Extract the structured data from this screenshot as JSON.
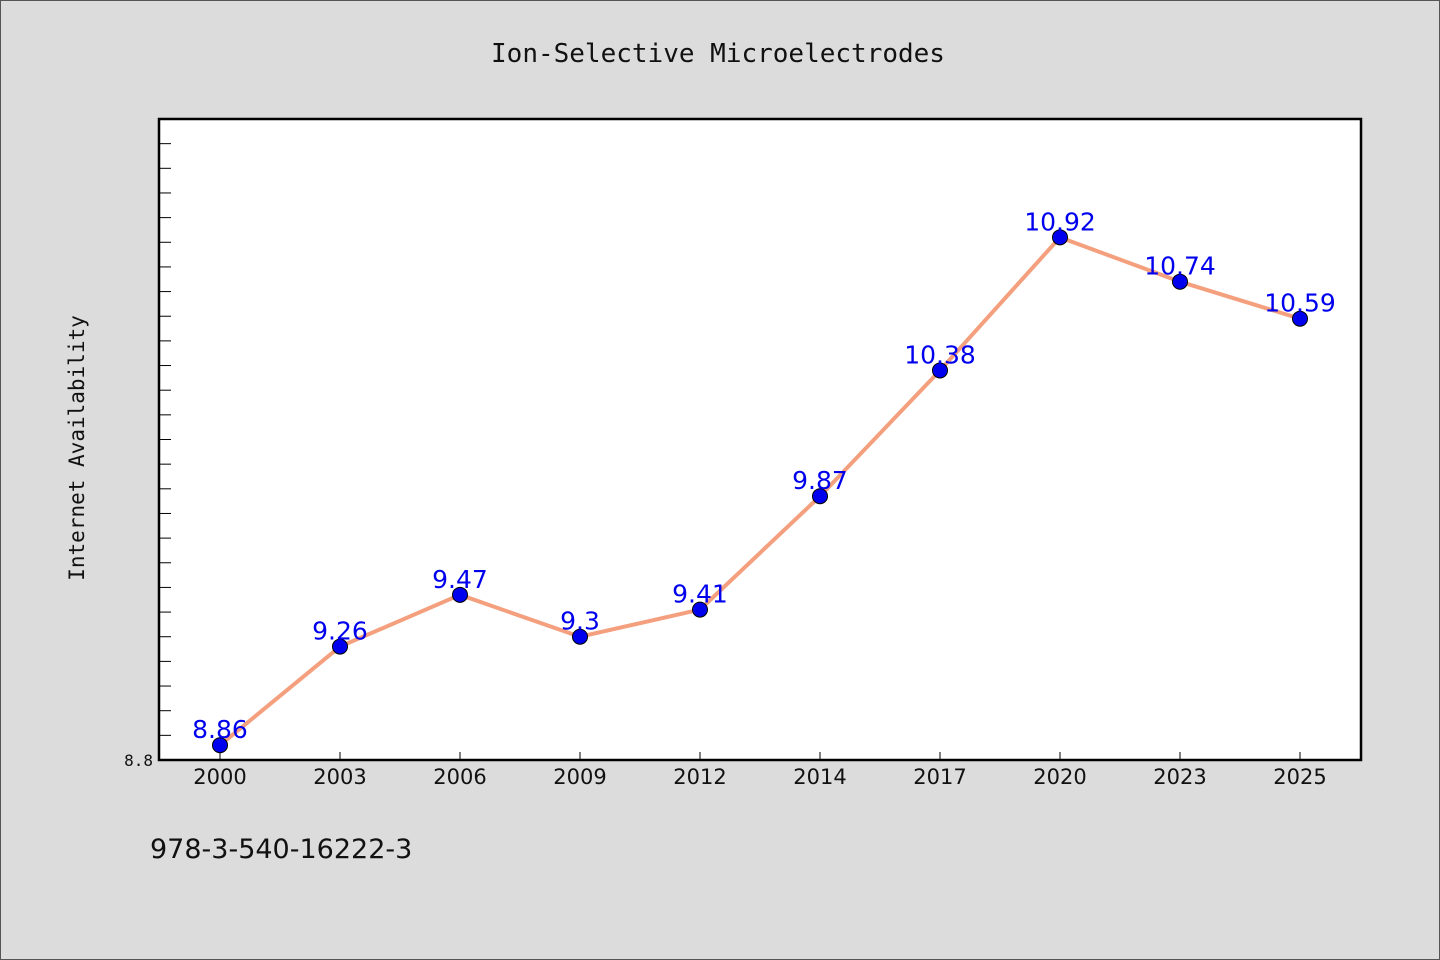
{
  "chart_data": {
    "type": "line",
    "title": "Ion-Selective Microelectrodes",
    "xlabel": "",
    "ylabel": "Internet Availability",
    "categories": [
      "2000",
      "2003",
      "2006",
      "2009",
      "2012",
      "2014",
      "2017",
      "2020",
      "2023",
      "2025"
    ],
    "series": [
      {
        "values": [
          8.86,
          9.26,
          9.47,
          9.3,
          9.41,
          9.87,
          10.38,
          10.92,
          10.74,
          10.59
        ],
        "data_labels": [
          "8.86",
          "9.26",
          "9.47",
          "9.3",
          "9.41",
          "9.87",
          "10.38",
          "10.92",
          "10.74",
          "10.59"
        ],
        "line_color": "#f4a07e",
        "marker_color": "#0000ee",
        "label_color": "#0000ee"
      }
    ],
    "ylim": [
      8.8,
      11.4
    ],
    "y_tick_labels": [
      "8.8"
    ],
    "grid": false,
    "legend": "none"
  },
  "footer": {
    "text": "978-3-540-16222-3"
  },
  "colors": {
    "background": "#dcdcdc",
    "plot_background": "#ffffff",
    "axis": "#000000"
  }
}
